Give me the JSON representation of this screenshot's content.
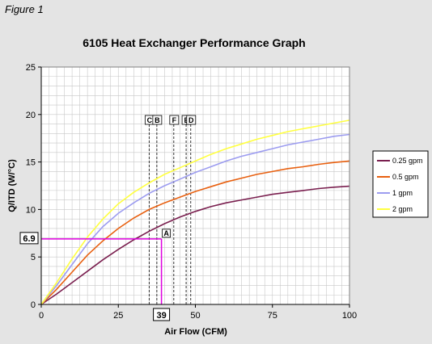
{
  "figure_label": "Figure 1",
  "colors": {
    "background": "#e4e4e4",
    "plot_area": "#ffffff",
    "grid": "#c8c8c8",
    "annotation": "#e000e0"
  },
  "chart_data": {
    "type": "line",
    "title": "6105 Heat Exchanger Performance Graph",
    "xlabel": "Air Flow (CFM)",
    "ylabel": "Q/ITD (W/°C)",
    "xlim": [
      0,
      100
    ],
    "ylim": [
      0,
      25
    ],
    "x_ticks": [
      0,
      25,
      50,
      75,
      100
    ],
    "y_ticks": [
      0,
      5,
      10,
      15,
      20,
      25
    ],
    "x_grid_step": 2.5,
    "y_grid_step": 1,
    "grid": true,
    "legend_position": "right",
    "series": [
      {
        "name": "0.25 gpm",
        "color": "#7a1f4f",
        "points": [
          [
            0,
            0
          ],
          [
            5,
            1.1
          ],
          [
            10,
            2.3
          ],
          [
            15,
            3.5
          ],
          [
            20,
            4.7
          ],
          [
            25,
            5.8
          ],
          [
            30,
            6.8
          ],
          [
            35,
            7.7
          ],
          [
            40,
            8.5
          ],
          [
            45,
            9.2
          ],
          [
            50,
            9.8
          ],
          [
            55,
            10.3
          ],
          [
            60,
            10.7
          ],
          [
            65,
            11.0
          ],
          [
            70,
            11.3
          ],
          [
            75,
            11.6
          ],
          [
            80,
            11.8
          ],
          [
            85,
            12.0
          ],
          [
            90,
            12.2
          ],
          [
            95,
            12.35
          ],
          [
            100,
            12.45
          ]
        ]
      },
      {
        "name": "0.5 gpm",
        "color": "#e86010",
        "points": [
          [
            0,
            0
          ],
          [
            5,
            1.6
          ],
          [
            10,
            3.4
          ],
          [
            15,
            5.2
          ],
          [
            20,
            6.7
          ],
          [
            25,
            8.0
          ],
          [
            30,
            9.1
          ],
          [
            35,
            10.0
          ],
          [
            40,
            10.7
          ],
          [
            45,
            11.3
          ],
          [
            50,
            11.9
          ],
          [
            55,
            12.4
          ],
          [
            60,
            12.9
          ],
          [
            65,
            13.3
          ],
          [
            70,
            13.7
          ],
          [
            75,
            14.0
          ],
          [
            80,
            14.3
          ],
          [
            85,
            14.5
          ],
          [
            90,
            14.75
          ],
          [
            95,
            14.95
          ],
          [
            100,
            15.1
          ]
        ]
      },
      {
        "name": "1 gpm",
        "color": "#9c9cf0",
        "points": [
          [
            0,
            0
          ],
          [
            5,
            2.0
          ],
          [
            10,
            4.2
          ],
          [
            15,
            6.4
          ],
          [
            20,
            8.2
          ],
          [
            25,
            9.6
          ],
          [
            30,
            10.7
          ],
          [
            35,
            11.7
          ],
          [
            40,
            12.5
          ],
          [
            45,
            13.2
          ],
          [
            50,
            13.9
          ],
          [
            55,
            14.5
          ],
          [
            60,
            15.1
          ],
          [
            65,
            15.6
          ],
          [
            70,
            16.0
          ],
          [
            75,
            16.4
          ],
          [
            80,
            16.8
          ],
          [
            85,
            17.1
          ],
          [
            90,
            17.4
          ],
          [
            95,
            17.7
          ],
          [
            100,
            17.9
          ]
        ]
      },
      {
        "name": "2 gpm",
        "color": "#ffff40",
        "points": [
          [
            0,
            0
          ],
          [
            5,
            2.3
          ],
          [
            10,
            4.8
          ],
          [
            15,
            7.1
          ],
          [
            20,
            9.0
          ],
          [
            25,
            10.6
          ],
          [
            30,
            11.8
          ],
          [
            35,
            12.8
          ],
          [
            40,
            13.7
          ],
          [
            45,
            14.4
          ],
          [
            50,
            15.1
          ],
          [
            55,
            15.8
          ],
          [
            60,
            16.4
          ],
          [
            65,
            16.9
          ],
          [
            70,
            17.4
          ],
          [
            75,
            17.8
          ],
          [
            80,
            18.2
          ],
          [
            85,
            18.5
          ],
          [
            90,
            18.8
          ],
          [
            95,
            19.1
          ],
          [
            100,
            19.4
          ]
        ]
      }
    ],
    "markers": [
      {
        "label": "C",
        "x": 35
      },
      {
        "label": "B",
        "x": 37.5
      },
      {
        "label": "F",
        "x": 43
      },
      {
        "label": "E",
        "x": 47
      },
      {
        "label": "D",
        "x": 48.5
      }
    ],
    "annotation": {
      "x": 39,
      "y": 6.9,
      "x_label": "39",
      "y_label": "6.9",
      "point_label": "A"
    }
  }
}
